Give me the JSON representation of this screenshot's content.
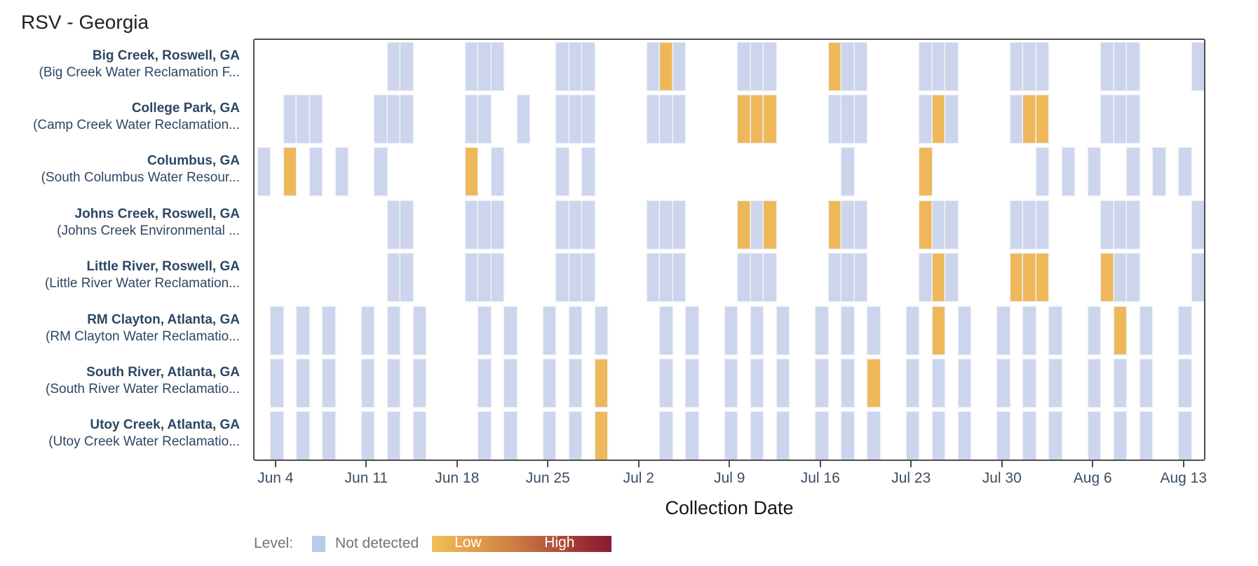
{
  "title": "RSV - Georgia",
  "legend": {
    "label": "Level:",
    "not_detected": "Not detected",
    "low": "Low",
    "high": "High",
    "not_detected_color": "#bcc9ea",
    "low_color": "#eeb85a",
    "gradient_start_color": "#f4be58",
    "gradient_end_color": "#8a1b31"
  },
  "chart_data": {
    "type": "heatmap",
    "title": "RSV - Georgia",
    "xlabel": "Collection Date",
    "ylabel": "",
    "x_ticks": [
      "Jun 4",
      "Jun 11",
      "Jun 18",
      "Jun 25",
      "Jul 2",
      "Jul 9",
      "Jul 16",
      "Jul 23",
      "Jul 30",
      "Aug 6",
      "Aug 13"
    ],
    "x_range": [
      "Jun 2",
      "Aug 15"
    ],
    "grid": false,
    "legend_position": "bottom-left",
    "levels": [
      "not_detected",
      "low",
      "high"
    ],
    "tile_colors": {
      "not_detected": "#ccd5ec",
      "low": "#eeb85a"
    },
    "rows": [
      {
        "site": "Big Creek, Roswell, GA",
        "facility": "(Big Creek Water Reclamation F...",
        "dates": [
          "Jun 13",
          "Jun 14",
          "Jun 19",
          "Jun 20",
          "Jun 21",
          "Jun 26",
          "Jun 27",
          "Jun 28",
          "Jul 3",
          "Jul 4",
          "Jul 5",
          "Jul 10",
          "Jul 11",
          "Jul 12",
          "Jul 17",
          "Jul 18",
          "Jul 19",
          "Jul 24",
          "Jul 25",
          "Jul 26",
          "Jul 31",
          "Aug 1",
          "Aug 2",
          "Aug 7",
          "Aug 8",
          "Aug 9",
          "Aug 14"
        ],
        "low_dates": [
          "Jul 4",
          "Jul 17"
        ]
      },
      {
        "site": "College Park, GA",
        "facility": "(Camp Creek Water Reclamation...",
        "dates": [
          "Jun 5",
          "Jun 6",
          "Jun 7",
          "Jun 12",
          "Jun 13",
          "Jun 14",
          "Jun 19",
          "Jun 20",
          "Jun 23",
          "Jun 26",
          "Jun 27",
          "Jun 28",
          "Jul 3",
          "Jul 4",
          "Jul 5",
          "Jul 10",
          "Jul 11",
          "Jul 12",
          "Jul 17",
          "Jul 18",
          "Jul 19",
          "Jul 24",
          "Jul 25",
          "Jul 26",
          "Jul 31",
          "Aug 1",
          "Aug 2",
          "Aug 7",
          "Aug 8",
          "Aug 9"
        ],
        "low_dates": [
          "Jul 10",
          "Jul 11",
          "Jul 12",
          "Jul 25",
          "Aug 1",
          "Aug 2"
        ]
      },
      {
        "site": "Columbus, GA",
        "facility": "(South Columbus Water Resour...",
        "dates": [
          "Jun 3",
          "Jun 5",
          "Jun 7",
          "Jun 9",
          "Jun 12",
          "Jun 19",
          "Jun 21",
          "Jun 26",
          "Jun 28",
          "Jul 18",
          "Jul 24",
          "Aug 2",
          "Aug 4",
          "Aug 6",
          "Aug 9",
          "Aug 11",
          "Aug 13"
        ],
        "low_dates": [
          "Jun 5",
          "Jun 19",
          "Jul 24"
        ]
      },
      {
        "site": "Johns Creek, Roswell, GA",
        "facility": "(Johns Creek Environmental ...",
        "dates": [
          "Jun 13",
          "Jun 14",
          "Jun 19",
          "Jun 20",
          "Jun 21",
          "Jun 26",
          "Jun 27",
          "Jun 28",
          "Jul 3",
          "Jul 4",
          "Jul 5",
          "Jul 10",
          "Jul 11",
          "Jul 12",
          "Jul 17",
          "Jul 18",
          "Jul 19",
          "Jul 24",
          "Jul 25",
          "Jul 26",
          "Jul 31",
          "Aug 1",
          "Aug 2",
          "Aug 7",
          "Aug 8",
          "Aug 9",
          "Aug 14"
        ],
        "low_dates": [
          "Jul 10",
          "Jul 12",
          "Jul 17",
          "Jul 24"
        ]
      },
      {
        "site": "Little River, Roswell, GA",
        "facility": "(Little River Water Reclamation...",
        "dates": [
          "Jun 13",
          "Jun 14",
          "Jun 19",
          "Jun 20",
          "Jun 21",
          "Jun 26",
          "Jun 27",
          "Jun 28",
          "Jul 3",
          "Jul 4",
          "Jul 5",
          "Jul 10",
          "Jul 11",
          "Jul 12",
          "Jul 17",
          "Jul 18",
          "Jul 19",
          "Jul 24",
          "Jul 25",
          "Jul 26",
          "Jul 31",
          "Aug 1",
          "Aug 2",
          "Aug 7",
          "Aug 8",
          "Aug 9",
          "Aug 14"
        ],
        "low_dates": [
          "Jul 25",
          "Jul 31",
          "Aug 1",
          "Aug 2",
          "Aug 7"
        ]
      },
      {
        "site": "RM Clayton, Atlanta, GA",
        "facility": "(RM Clayton Water Reclamatio...",
        "dates": [
          "Jun 4",
          "Jun 6",
          "Jun 8",
          "Jun 11",
          "Jun 13",
          "Jun 15",
          "Jun 20",
          "Jun 22",
          "Jun 25",
          "Jun 27",
          "Jun 29",
          "Jul 4",
          "Jul 6",
          "Jul 9",
          "Jul 11",
          "Jul 13",
          "Jul 16",
          "Jul 18",
          "Jul 20",
          "Jul 23",
          "Jul 25",
          "Jul 27",
          "Jul 30",
          "Aug 1",
          "Aug 3",
          "Aug 6",
          "Aug 8",
          "Aug 10",
          "Aug 13"
        ],
        "low_dates": [
          "Jul 25",
          "Aug 8"
        ]
      },
      {
        "site": "South River, Atlanta, GA",
        "facility": "(South River Water Reclamatio...",
        "dates": [
          "Jun 4",
          "Jun 6",
          "Jun 8",
          "Jun 11",
          "Jun 13",
          "Jun 15",
          "Jun 20",
          "Jun 22",
          "Jun 25",
          "Jun 27",
          "Jun 29",
          "Jul 4",
          "Jul 6",
          "Jul 9",
          "Jul 11",
          "Jul 13",
          "Jul 16",
          "Jul 18",
          "Jul 20",
          "Jul 23",
          "Jul 25",
          "Jul 27",
          "Jul 30",
          "Aug 1",
          "Aug 3",
          "Aug 6",
          "Aug 8",
          "Aug 10",
          "Aug 13"
        ],
        "low_dates": [
          "Jun 29",
          "Jul 20"
        ]
      },
      {
        "site": "Utoy Creek, Atlanta, GA",
        "facility": "(Utoy Creek Water Reclamatio...",
        "dates": [
          "Jun 4",
          "Jun 6",
          "Jun 8",
          "Jun 11",
          "Jun 13",
          "Jun 15",
          "Jun 20",
          "Jun 22",
          "Jun 25",
          "Jun 27",
          "Jun 29",
          "Jul 4",
          "Jul 6",
          "Jul 9",
          "Jul 11",
          "Jul 13",
          "Jul 16",
          "Jul 18",
          "Jul 20",
          "Jul 23",
          "Jul 25",
          "Jul 27",
          "Jul 30",
          "Aug 1",
          "Aug 3",
          "Aug 6",
          "Aug 8",
          "Aug 10",
          "Aug 13"
        ],
        "low_dates": [
          "Jun 29"
        ]
      }
    ]
  }
}
